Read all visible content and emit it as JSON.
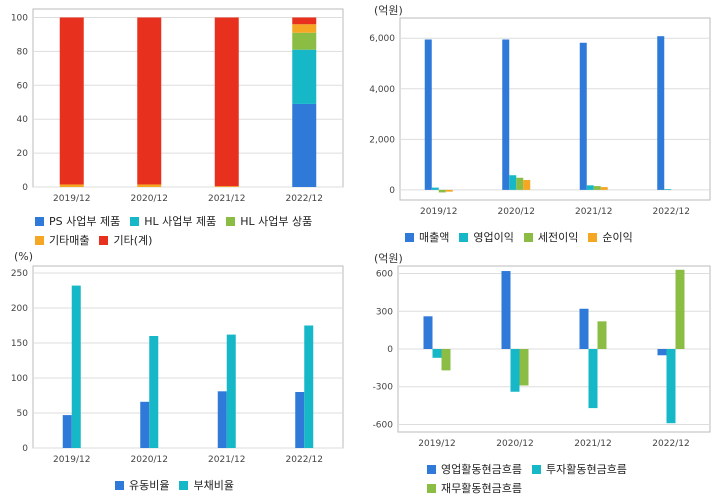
{
  "colors": {
    "blue": "#2f7ad8",
    "cyan": "#16b8c8",
    "green": "#8bbd45",
    "orange": "#f5a623",
    "red": "#e8301f",
    "grid": "#dddddd",
    "frame": "#bbbbbb"
  },
  "chart_data": [
    {
      "type": "bar",
      "stacked": true,
      "unit": "",
      "categories": [
        "2019/12",
        "2020/12",
        "2021/12",
        "2022/12"
      ],
      "ylim": [
        0,
        105
      ],
      "yticks": [
        0,
        20,
        40,
        60,
        80,
        100
      ],
      "series": [
        {
          "name": "PS 사업부 제품",
          "color": "#2f7ad8",
          "values": [
            0,
            0,
            0,
            49
          ]
        },
        {
          "name": "HL 사업부 제품",
          "color": "#16b8c8",
          "values": [
            0,
            0,
            0,
            32
          ]
        },
        {
          "name": "HL 사업부 상품",
          "color": "#8bbd45",
          "values": [
            0,
            0,
            0,
            10
          ]
        },
        {
          "name": "기타매출",
          "color": "#f5a623",
          "values": [
            1.5,
            1.5,
            0.5,
            5
          ]
        },
        {
          "name": "기타(계)",
          "color": "#e8301f",
          "values": [
            98.5,
            98.5,
            99.5,
            4
          ]
        }
      ],
      "grid": true,
      "legend_position": "bottom"
    },
    {
      "type": "bar",
      "unit": "(억원)",
      "categories": [
        "2019/12",
        "2020/12",
        "2021/12",
        "2022/12"
      ],
      "ylim": [
        -400,
        6800
      ],
      "yticks": [
        0,
        2000,
        4000,
        6000
      ],
      "yticklabels": [
        "0",
        "2,000",
        "4,000",
        "6,000"
      ],
      "series": [
        {
          "name": "매출액",
          "color": "#2f7ad8",
          "values": [
            5950,
            5950,
            5820,
            6080
          ]
        },
        {
          "name": "영업이익",
          "color": "#16b8c8",
          "values": [
            90,
            580,
            180,
            30
          ]
        },
        {
          "name": "세전이익",
          "color": "#8bbd45",
          "values": [
            -100,
            480,
            150,
            0
          ]
        },
        {
          "name": "순이익",
          "color": "#f5a623",
          "values": [
            -70,
            390,
            110,
            0
          ]
        }
      ],
      "grid": true,
      "legend_position": "bottom"
    },
    {
      "type": "bar",
      "unit": "(%)",
      "categories": [
        "2019/12",
        "2020/12",
        "2021/12",
        "2022/12"
      ],
      "ylim": [
        0,
        260
      ],
      "yticks": [
        0,
        50,
        100,
        150,
        200,
        250
      ],
      "series": [
        {
          "name": "유동비율",
          "color": "#2f7ad8",
          "values": [
            47,
            66,
            81,
            80
          ]
        },
        {
          "name": "부채비율",
          "color": "#16b8c8",
          "values": [
            232,
            160,
            162,
            175
          ]
        }
      ],
      "grid": true,
      "legend_position": "bottom"
    },
    {
      "type": "bar",
      "unit": "(억원)",
      "categories": [
        "2019/12",
        "2020/12",
        "2021/12",
        "2022/12"
      ],
      "ylim": [
        -660,
        660
      ],
      "yticks": [
        -600,
        -300,
        0,
        300,
        600
      ],
      "series": [
        {
          "name": "영업활동현금흐름",
          "color": "#2f7ad8",
          "values": [
            260,
            620,
            320,
            -50
          ]
        },
        {
          "name": "투자활동현금흐름",
          "color": "#16b8c8",
          "values": [
            -70,
            -340,
            -470,
            -590
          ]
        },
        {
          "name": "재무활동현금흐름",
          "color": "#8bbd45",
          "values": [
            -170,
            -290,
            220,
            630
          ]
        }
      ],
      "grid": true,
      "legend_position": "bottom"
    }
  ]
}
